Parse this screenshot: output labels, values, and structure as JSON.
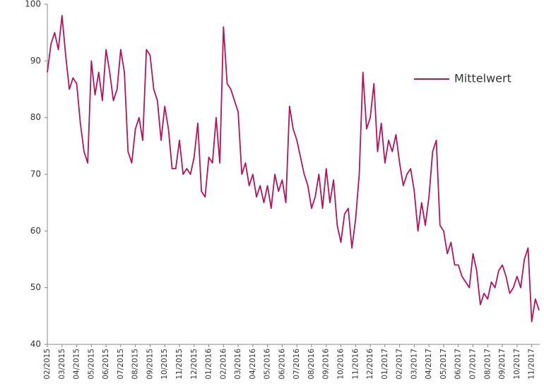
{
  "chart_data": {
    "type": "line",
    "categories": [
      "02/2015",
      null,
      null,
      null,
      "03/2015",
      null,
      null,
      null,
      "04/2015",
      null,
      null,
      null,
      "05/2015",
      null,
      null,
      null,
      "06/2015",
      null,
      null,
      null,
      "07/2015",
      null,
      null,
      null,
      "08/2015",
      null,
      null,
      null,
      "09/2015",
      null,
      null,
      null,
      "10/2015",
      null,
      null,
      null,
      "11/2015",
      null,
      null,
      null,
      "12/2015",
      null,
      null,
      null,
      "01/2016",
      null,
      null,
      null,
      "02/2016",
      null,
      null,
      null,
      "03/2016",
      null,
      null,
      null,
      "04/2016",
      null,
      null,
      null,
      "05/2016",
      null,
      null,
      null,
      "06/2016",
      null,
      null,
      null,
      "07/2016",
      null,
      null,
      null,
      "08/2016",
      null,
      null,
      null,
      "09/2016",
      null,
      null,
      null,
      "10/2016",
      null,
      null,
      null,
      "11/2016",
      null,
      null,
      null,
      "12/2016",
      null,
      null,
      null,
      "01/2017",
      null,
      null,
      null,
      "02/2017",
      null,
      null,
      null,
      "03/2017",
      null,
      null,
      null,
      "04/2017",
      null,
      null,
      null,
      "05/2017",
      null,
      null,
      null,
      "06/2017",
      null,
      null,
      null,
      "07/2017",
      null,
      null,
      null,
      "08/2017",
      null,
      null,
      null,
      "09/2017",
      null,
      null,
      null,
      "10/2017",
      null,
      null,
      null,
      "11/2017",
      null,
      null
    ],
    "series": [
      {
        "name": "Mittelwert",
        "color": "#b5135e",
        "values": [
          88,
          93,
          95,
          92,
          98,
          91,
          85,
          87,
          86,
          79,
          74,
          72,
          90,
          84,
          88,
          83,
          92,
          88,
          83,
          85,
          92,
          88,
          74,
          72,
          78,
          80,
          76,
          92,
          91,
          85,
          83,
          76,
          82,
          78,
          71,
          71,
          76,
          70,
          71,
          70,
          73,
          79,
          67,
          66,
          73,
          72,
          80,
          72,
          96,
          86,
          85,
          83,
          81,
          70,
          72,
          68,
          70,
          66,
          68,
          65,
          68,
          64,
          70,
          67,
          69,
          65,
          82,
          78,
          76,
          73,
          70,
          68,
          64,
          66,
          70,
          64,
          71,
          65,
          69,
          61,
          58,
          63,
          64,
          57,
          62,
          70,
          88,
          78,
          80,
          86,
          74,
          79,
          72,
          76,
          74,
          77,
          72,
          68,
          70,
          71,
          67,
          60,
          65,
          61,
          66,
          74,
          76,
          61,
          60,
          56,
          58,
          54,
          54,
          52,
          51,
          50,
          56,
          53,
          47,
          49,
          48,
          51,
          50,
          53,
          54,
          52,
          49,
          50,
          52,
          50,
          55,
          57,
          44,
          48,
          46
        ]
      }
    ],
    "ylim": [
      40,
      100
    ],
    "yticks": [
      40,
      50,
      60,
      70,
      80,
      90,
      100
    ],
    "legend": "upper right"
  }
}
